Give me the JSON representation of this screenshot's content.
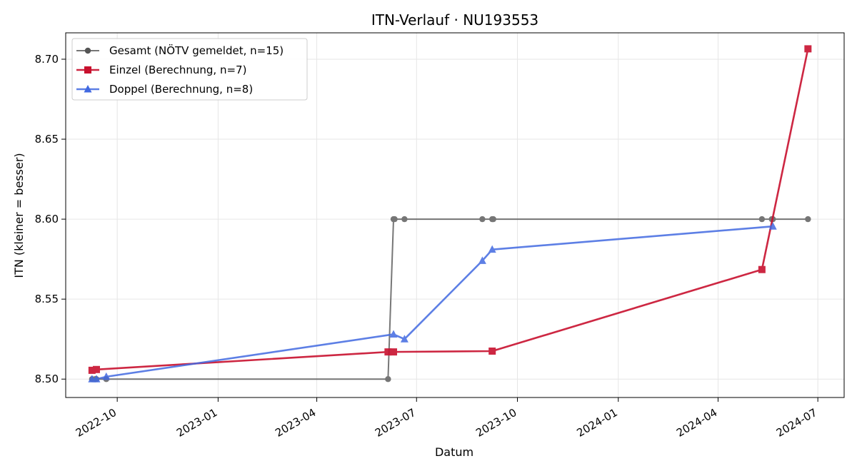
{
  "chart_data": {
    "type": "line",
    "title": "ITN-Verlauf · NU193553",
    "xlabel": "Datum",
    "ylabel": "ITN  (kleiner = besser)",
    "xlim": [
      "2022-08-15",
      "2024-07-25"
    ],
    "ylim": [
      8.4885,
      8.7165
    ],
    "grid": true,
    "legend_position": "top-left",
    "x_ticks": [
      "2022-10",
      "2023-01",
      "2023-04",
      "2023-07",
      "2023-10",
      "2024-01",
      "2024-04",
      "2024-07"
    ],
    "y_ticks": [
      "8.50",
      "8.55",
      "8.60",
      "8.65",
      "8.70"
    ],
    "series": [
      {
        "name": "Gesamt (NÖTV gemeldet, n=15)",
        "color": "#555555",
        "marker": "circle",
        "points": [
          [
            "2022-09-08",
            8.5
          ],
          [
            "2022-09-11",
            8.5
          ],
          [
            "2022-09-12",
            8.5
          ],
          [
            "2022-09-21",
            8.5
          ],
          [
            "2023-06-05",
            8.5
          ],
          [
            "2023-06-10",
            8.6
          ],
          [
            "2023-06-11",
            8.6
          ],
          [
            "2023-06-20",
            8.6
          ],
          [
            "2023-08-30",
            8.6
          ],
          [
            "2023-09-08",
            8.6
          ],
          [
            "2023-09-09",
            8.6
          ],
          [
            "2024-05-11",
            8.6
          ],
          [
            "2024-05-20",
            8.6
          ],
          [
            "2024-05-21",
            8.6
          ],
          [
            "2024-06-22",
            8.6
          ]
        ]
      },
      {
        "name": "Einzel (Berechnung, n=7)",
        "color": "#c8102e",
        "marker": "square",
        "points": [
          [
            "2022-09-08",
            8.5055
          ],
          [
            "2022-09-12",
            8.506
          ],
          [
            "2023-06-05",
            8.517
          ],
          [
            "2023-06-10",
            8.517
          ],
          [
            "2023-09-08",
            8.5175
          ],
          [
            "2024-05-11",
            8.5685
          ],
          [
            "2024-06-22",
            8.7065
          ]
        ]
      },
      {
        "name": "Doppel (Berechnung, n=8)",
        "color": "#4169e1",
        "marker": "triangle",
        "points": [
          [
            "2022-09-08",
            8.5
          ],
          [
            "2022-09-12",
            8.5
          ],
          [
            "2022-09-21",
            8.5015
          ],
          [
            "2023-06-10",
            8.528
          ],
          [
            "2023-06-20",
            8.525
          ],
          [
            "2023-08-30",
            8.574
          ],
          [
            "2023-09-08",
            8.581
          ],
          [
            "2024-05-21",
            8.5955
          ]
        ]
      }
    ]
  }
}
